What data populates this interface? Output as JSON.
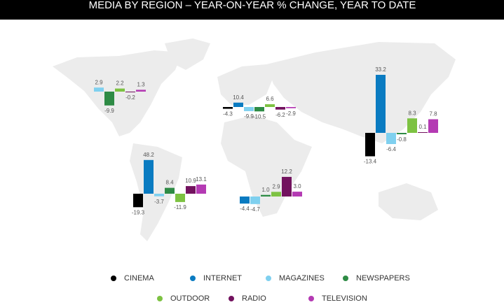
{
  "chart_data": {
    "type": "bar",
    "title": "MEDIA BY REGION – YEAR-ON-YEAR % CHANGE, YEAR TO DATE",
    "categories": [
      null,
      null,
      null,
      null,
      null
    ],
    "series": [
      {
        "name": "CINEMA",
        "color": "#000000",
        "values": [
          null,
          -4.3,
          -19.3,
          null,
          -13.4
        ]
      },
      {
        "name": "INTERNET",
        "color": "#0a7bc1",
        "values": [
          null,
          10.4,
          48.2,
          -4.4,
          33.2
        ]
      },
      {
        "name": "MAGAZINES",
        "color": "#7fd0ef",
        "values": [
          2.9,
          -9.9,
          -3.7,
          -4.7,
          -6.4
        ]
      },
      {
        "name": "NEWSPAPERS",
        "color": "#2e8b45",
        "values": [
          -9.9,
          -10.5,
          8.4,
          1.0,
          -0.8
        ],
        "value_labels": [
          null,
          null,
          null,
          "1.0",
          null
        ]
      },
      {
        "name": "OUTDOOR",
        "color": "#7dc242",
        "values": [
          2.2,
          6.6,
          -11.9,
          2.9,
          8.3
        ]
      },
      {
        "name": "RADIO",
        "color": "#72125e",
        "values": [
          -0.2,
          -6.2,
          10.9,
          12.2,
          0.1
        ]
      },
      {
        "name": "TELEVISION",
        "color": "#b43ab3",
        "values": [
          1.3,
          -2.9,
          13.1,
          3.0,
          7.8
        ],
        "value_labels": [
          null,
          null,
          null,
          "3.0",
          null
        ]
      }
    ]
  }
}
